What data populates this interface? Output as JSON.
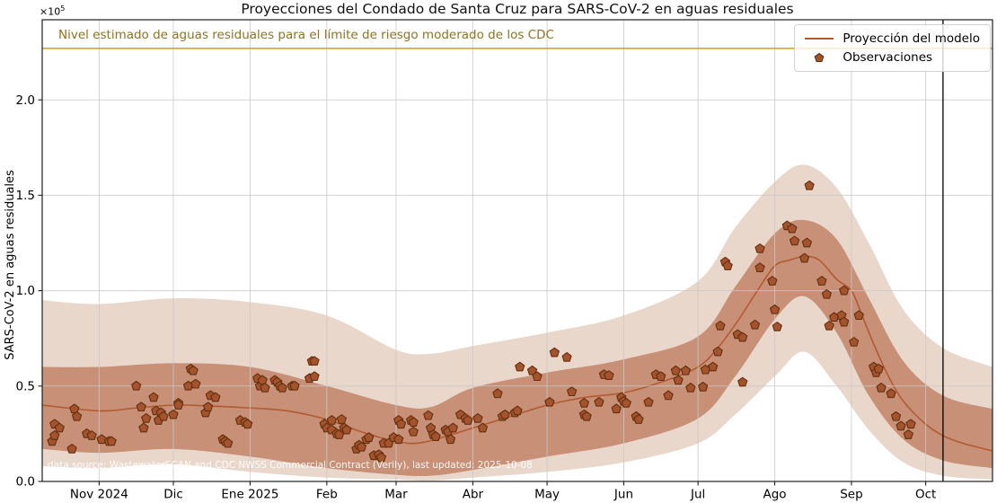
{
  "figure": {
    "title": "Proyecciones del Condado de Santa Cruz para SARS-CoV-2 en aguas residuales",
    "ylabel": "SARS-CoV-2 en aguas residuales",
    "y_offset_base": "×10",
    "y_offset_exp": "5",
    "source_note": "data source: WastewaterSCAN and CDC NWSS Commercial Contract (Verily), last updated: 2025-10-08"
  },
  "threshold": {
    "label": "Nivel estimado de aguas residuales para el límite de riesgo moderado de los CDC",
    "value": 2.27,
    "line_color": "#d9a41e",
    "label_color": "#8f7120"
  },
  "legend": {
    "model_label": "Proyección del modelo",
    "obs_label": "Observaciones"
  },
  "colors": {
    "band_outer": "#ead7cb",
    "band_inner": "#c79077",
    "model_line": "#b25b33",
    "marker_fill": "#a5532c",
    "marker_edge": "#61300f",
    "grid": "rgba(200,200,200,0.8)",
    "frame": "#1f1f1f",
    "today_line": "#000000"
  },
  "chart_data": {
    "type": "line",
    "title": "Proyecciones del Condado de Santa Cruz para SARS-CoV-2 en aguas residuales",
    "xlabel": "",
    "ylabel": "SARS-CoV-2 en aguas residuales (×10⁵)",
    "ylim": [
      0,
      2.42
    ],
    "x_domain": [
      "2024-10-09",
      "2025-10-28"
    ],
    "grid": true,
    "legend_position": "upper right",
    "y_ticks": [
      0,
      0.5,
      1.0,
      1.5,
      2.0
    ],
    "y_tick_labels": [
      "0.0",
      "0.5",
      "1.0",
      "1.5",
      "2.0"
    ],
    "x_ticks": [
      {
        "date": "2024-11-01",
        "label": "Nov 2024"
      },
      {
        "date": "2024-12-01",
        "label": "Dic"
      },
      {
        "date": "2025-01-01",
        "label": "Ene 2025"
      },
      {
        "date": "2025-02-01",
        "label": "Feb"
      },
      {
        "date": "2025-03-01",
        "label": "Mar"
      },
      {
        "date": "2025-04-01",
        "label": "Abr"
      },
      {
        "date": "2025-05-01",
        "label": "May"
      },
      {
        "date": "2025-06-01",
        "label": "Jun"
      },
      {
        "date": "2025-07-01",
        "label": "Jul"
      },
      {
        "date": "2025-08-01",
        "label": "Ago"
      },
      {
        "date": "2025-09-01",
        "label": "Sep"
      },
      {
        "date": "2025-10-01",
        "label": "Oct"
      }
    ],
    "today_line": "2025-10-08",
    "threshold_value": 2.27,
    "series": [
      {
        "name": "Proyección del modelo",
        "type": "line",
        "color": "#b25b33",
        "points": [
          [
            "2024-10-09",
            0.4
          ],
          [
            "2024-11-01",
            0.37
          ],
          [
            "2024-11-16",
            0.385
          ],
          [
            "2024-12-01",
            0.4
          ],
          [
            "2024-12-16",
            0.395
          ],
          [
            "2025-01-01",
            0.385
          ],
          [
            "2025-01-16",
            0.37
          ],
          [
            "2025-02-01",
            0.325
          ],
          [
            "2025-02-15",
            0.26
          ],
          [
            "2025-03-01",
            0.21
          ],
          [
            "2025-03-12",
            0.205
          ],
          [
            "2025-04-01",
            0.28
          ],
          [
            "2025-04-16",
            0.34
          ],
          [
            "2025-05-01",
            0.4
          ],
          [
            "2025-05-16",
            0.44
          ],
          [
            "2025-06-01",
            0.465
          ],
          [
            "2025-06-16",
            0.52
          ],
          [
            "2025-07-01",
            0.6
          ],
          [
            "2025-07-09",
            0.7
          ],
          [
            "2025-07-17",
            0.84
          ],
          [
            "2025-07-25",
            1.0
          ],
          [
            "2025-08-01",
            1.13
          ],
          [
            "2025-08-07",
            1.16
          ],
          [
            "2025-08-13",
            1.18
          ],
          [
            "2025-08-19",
            1.16
          ],
          [
            "2025-08-26",
            1.06
          ],
          [
            "2025-09-01",
            1.0
          ],
          [
            "2025-09-05",
            0.88
          ],
          [
            "2025-09-10",
            0.72
          ],
          [
            "2025-09-16",
            0.55
          ],
          [
            "2025-09-22",
            0.42
          ],
          [
            "2025-10-01",
            0.3
          ],
          [
            "2025-10-08",
            0.24
          ],
          [
            "2025-10-16",
            0.2
          ],
          [
            "2025-10-28",
            0.16
          ]
        ]
      },
      {
        "name": "Observaciones",
        "type": "scatter",
        "marker": "pentagon",
        "color": "#a5532c",
        "edge_color": "#61300f",
        "points": [
          [
            "2024-10-13",
            0.21
          ],
          [
            "2024-10-14",
            0.3
          ],
          [
            "2024-10-14",
            0.24
          ],
          [
            "2024-10-16",
            0.28
          ],
          [
            "2024-10-21",
            0.17
          ],
          [
            "2024-10-22",
            0.38
          ],
          [
            "2024-10-23",
            0.34
          ],
          [
            "2024-10-27",
            0.25
          ],
          [
            "2024-10-29",
            0.24
          ],
          [
            "2024-11-02",
            0.22
          ],
          [
            "2024-11-05",
            0.21
          ],
          [
            "2024-11-06",
            0.21
          ],
          [
            "2024-11-16",
            0.5
          ],
          [
            "2024-11-18",
            0.39
          ],
          [
            "2024-11-19",
            0.28
          ],
          [
            "2024-11-20",
            0.33
          ],
          [
            "2024-11-23",
            0.44
          ],
          [
            "2024-11-24",
            0.37
          ],
          [
            "2024-11-25",
            0.32
          ],
          [
            "2024-11-26",
            0.36
          ],
          [
            "2024-11-27",
            0.34
          ],
          [
            "2024-12-01",
            0.35
          ],
          [
            "2024-12-03",
            0.41
          ],
          [
            "2024-12-03",
            0.4
          ],
          [
            "2024-12-07",
            0.5
          ],
          [
            "2024-12-08",
            0.59
          ],
          [
            "2024-12-09",
            0.58
          ],
          [
            "2024-12-10",
            0.51
          ],
          [
            "2024-12-14",
            0.36
          ],
          [
            "2024-12-15",
            0.39
          ],
          [
            "2024-12-16",
            0.45
          ],
          [
            "2024-12-18",
            0.44
          ],
          [
            "2024-12-21",
            0.22
          ],
          [
            "2024-12-22",
            0.21
          ],
          [
            "2024-12-23",
            0.2
          ],
          [
            "2024-12-28",
            0.32
          ],
          [
            "2024-12-30",
            0.31
          ],
          [
            "2024-12-31",
            0.3
          ],
          [
            "2025-01-04",
            0.54
          ],
          [
            "2025-01-05",
            0.5
          ],
          [
            "2025-01-06",
            0.53
          ],
          [
            "2025-01-07",
            0.49
          ],
          [
            "2025-01-11",
            0.53
          ],
          [
            "2025-01-12",
            0.52
          ],
          [
            "2025-01-13",
            0.5
          ],
          [
            "2025-01-14",
            0.49
          ],
          [
            "2025-01-18",
            0.5
          ],
          [
            "2025-01-19",
            0.5
          ],
          [
            "2025-01-25",
            0.54
          ],
          [
            "2025-01-26",
            0.63
          ],
          [
            "2025-01-27",
            0.63
          ],
          [
            "2025-01-27",
            0.55
          ],
          [
            "2025-01-31",
            0.3
          ],
          [
            "2025-02-01",
            0.28
          ],
          [
            "2025-02-03",
            0.27
          ],
          [
            "2025-02-03",
            0.32
          ],
          [
            "2025-02-05",
            0.25
          ],
          [
            "2025-02-06",
            0.245
          ],
          [
            "2025-02-07",
            0.325
          ],
          [
            "2025-02-08",
            0.28
          ],
          [
            "2025-02-09",
            0.27
          ],
          [
            "2025-02-13",
            0.17
          ],
          [
            "2025-02-14",
            0.19
          ],
          [
            "2025-02-15",
            0.18
          ],
          [
            "2025-02-17",
            0.22
          ],
          [
            "2025-02-18",
            0.23
          ],
          [
            "2025-02-20",
            0.135
          ],
          [
            "2025-02-22",
            0.14
          ],
          [
            "2025-02-23",
            0.125
          ],
          [
            "2025-02-24",
            0.2
          ],
          [
            "2025-02-26",
            0.2
          ],
          [
            "2025-02-28",
            0.23
          ],
          [
            "2025-03-02",
            0.22
          ],
          [
            "2025-03-02",
            0.32
          ],
          [
            "2025-03-03",
            0.3
          ],
          [
            "2025-03-07",
            0.32
          ],
          [
            "2025-03-08",
            0.31
          ],
          [
            "2025-03-08",
            0.26
          ],
          [
            "2025-03-14",
            0.345
          ],
          [
            "2025-03-15",
            0.28
          ],
          [
            "2025-03-16",
            0.245
          ],
          [
            "2025-03-17",
            0.235
          ],
          [
            "2025-03-21",
            0.27
          ],
          [
            "2025-03-22",
            0.26
          ],
          [
            "2025-03-23",
            0.22
          ],
          [
            "2025-03-24",
            0.28
          ],
          [
            "2025-03-27",
            0.35
          ],
          [
            "2025-03-29",
            0.33
          ],
          [
            "2025-03-30",
            0.32
          ],
          [
            "2025-04-03",
            0.33
          ],
          [
            "2025-04-05",
            0.28
          ],
          [
            "2025-04-11",
            0.46
          ],
          [
            "2025-04-13",
            0.34
          ],
          [
            "2025-04-14",
            0.35
          ],
          [
            "2025-04-18",
            0.36
          ],
          [
            "2025-04-19",
            0.37
          ],
          [
            "2025-04-20",
            0.6
          ],
          [
            "2025-04-25",
            0.58
          ],
          [
            "2025-04-27",
            0.55
          ],
          [
            "2025-05-02",
            0.415
          ],
          [
            "2025-05-04",
            0.675
          ],
          [
            "2025-05-09",
            0.65
          ],
          [
            "2025-05-11",
            0.47
          ],
          [
            "2025-05-16",
            0.41
          ],
          [
            "2025-05-16",
            0.35
          ],
          [
            "2025-05-17",
            0.34
          ],
          [
            "2025-05-22",
            0.415
          ],
          [
            "2025-05-24",
            0.56
          ],
          [
            "2025-05-26",
            0.555
          ],
          [
            "2025-05-29",
            0.38
          ],
          [
            "2025-05-31",
            0.44
          ],
          [
            "2025-06-01",
            0.42
          ],
          [
            "2025-06-02",
            0.41
          ],
          [
            "2025-06-06",
            0.34
          ],
          [
            "2025-06-07",
            0.325
          ],
          [
            "2025-06-11",
            0.415
          ],
          [
            "2025-06-14",
            0.56
          ],
          [
            "2025-06-16",
            0.55
          ],
          [
            "2025-06-19",
            0.45
          ],
          [
            "2025-06-22",
            0.58
          ],
          [
            "2025-06-23",
            0.53
          ],
          [
            "2025-06-26",
            0.58
          ],
          [
            "2025-06-28",
            0.49
          ],
          [
            "2025-07-03",
            0.495
          ],
          [
            "2025-07-04",
            0.585
          ],
          [
            "2025-07-07",
            0.6
          ],
          [
            "2025-07-09",
            0.68
          ],
          [
            "2025-07-10",
            0.815
          ],
          [
            "2025-07-12",
            1.15
          ],
          [
            "2025-07-13",
            1.13
          ],
          [
            "2025-07-17",
            0.77
          ],
          [
            "2025-07-19",
            0.755
          ],
          [
            "2025-07-19",
            0.52
          ],
          [
            "2025-07-24",
            0.82
          ],
          [
            "2025-07-26",
            1.12
          ],
          [
            "2025-07-26",
            1.22
          ],
          [
            "2025-07-31",
            1.05
          ],
          [
            "2025-08-01",
            0.9
          ],
          [
            "2025-08-02",
            0.81
          ],
          [
            "2025-08-06",
            1.34
          ],
          [
            "2025-08-08",
            1.325
          ],
          [
            "2025-08-09",
            1.26
          ],
          [
            "2025-08-13",
            1.17
          ],
          [
            "2025-08-14",
            1.25
          ],
          [
            "2025-08-15",
            1.55
          ],
          [
            "2025-08-20",
            1.05
          ],
          [
            "2025-08-22",
            0.98
          ],
          [
            "2025-08-23",
            0.815
          ],
          [
            "2025-08-25",
            0.86
          ],
          [
            "2025-08-28",
            0.87
          ],
          [
            "2025-08-29",
            1.0
          ],
          [
            "2025-08-29",
            0.835
          ],
          [
            "2025-09-02",
            0.73
          ],
          [
            "2025-09-04",
            0.87
          ],
          [
            "2025-09-10",
            0.6
          ],
          [
            "2025-09-11",
            0.57
          ],
          [
            "2025-09-12",
            0.59
          ],
          [
            "2025-09-13",
            0.49
          ],
          [
            "2025-09-17",
            0.46
          ],
          [
            "2025-09-19",
            0.34
          ],
          [
            "2025-09-21",
            0.29
          ],
          [
            "2025-09-24",
            0.245
          ],
          [
            "2025-09-25",
            0.3
          ]
        ]
      }
    ],
    "bands": [
      {
        "name": "outer_interval",
        "color": "#ead7cb",
        "points": [
          [
            "2024-10-09",
            0.08,
            0.95
          ],
          [
            "2024-11-01",
            0.07,
            0.93
          ],
          [
            "2024-12-01",
            0.09,
            0.96
          ],
          [
            "2025-01-01",
            0.05,
            0.94
          ],
          [
            "2025-02-01",
            0.02,
            0.87
          ],
          [
            "2025-03-01",
            0.01,
            0.69
          ],
          [
            "2025-03-15",
            0.005,
            0.67
          ],
          [
            "2025-04-01",
            0.02,
            0.71
          ],
          [
            "2025-05-01",
            0.05,
            0.78
          ],
          [
            "2025-06-01",
            0.1,
            0.87
          ],
          [
            "2025-07-01",
            0.2,
            1.05
          ],
          [
            "2025-07-16",
            0.35,
            1.33
          ],
          [
            "2025-08-01",
            0.55,
            1.57
          ],
          [
            "2025-08-13",
            0.68,
            1.66
          ],
          [
            "2025-08-26",
            0.5,
            1.54
          ],
          [
            "2025-09-08",
            0.27,
            1.25
          ],
          [
            "2025-09-22",
            0.1,
            0.9
          ],
          [
            "2025-10-08",
            0.03,
            0.7
          ],
          [
            "2025-10-28",
            0.01,
            0.6
          ]
        ]
      },
      {
        "name": "inner_interval",
        "color": "#c79077",
        "points": [
          [
            "2024-10-09",
            0.17,
            0.6
          ],
          [
            "2024-11-01",
            0.15,
            0.6
          ],
          [
            "2024-12-01",
            0.17,
            0.62
          ],
          [
            "2025-01-01",
            0.13,
            0.6
          ],
          [
            "2025-02-01",
            0.07,
            0.5
          ],
          [
            "2025-03-01",
            0.035,
            0.4
          ],
          [
            "2025-03-15",
            0.03,
            0.39
          ],
          [
            "2025-04-01",
            0.06,
            0.49
          ],
          [
            "2025-05-01",
            0.13,
            0.57
          ],
          [
            "2025-06-01",
            0.2,
            0.64
          ],
          [
            "2025-07-01",
            0.33,
            0.76
          ],
          [
            "2025-07-16",
            0.55,
            1.02
          ],
          [
            "2025-08-01",
            0.85,
            1.3
          ],
          [
            "2025-08-13",
            0.97,
            1.37
          ],
          [
            "2025-08-26",
            0.78,
            1.27
          ],
          [
            "2025-09-08",
            0.45,
            0.96
          ],
          [
            "2025-09-22",
            0.22,
            0.63
          ],
          [
            "2025-10-08",
            0.11,
            0.45
          ],
          [
            "2025-10-28",
            0.07,
            0.38
          ]
        ]
      }
    ]
  }
}
